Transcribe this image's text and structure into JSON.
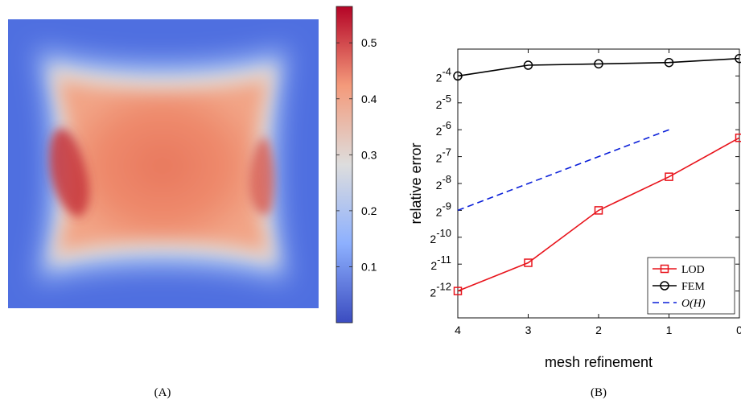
{
  "figure": {
    "caption_a": "(A)",
    "caption_b": "(B)"
  },
  "chart_data": [
    {
      "type": "heatmap",
      "panel": "A",
      "description_free": true,
      "colormap": [
        "#3b4cc0",
        "#8db0fe",
        "#dddddd",
        "#f49a7b",
        "#b40426"
      ],
      "color_range": [
        0.0,
        0.565
      ],
      "colorbar_ticks": [
        0.1,
        0.2,
        0.3,
        0.4,
        0.5
      ],
      "colorbar_tick_labels": [
        "0.1",
        "0.2",
        "0.3",
        "0.4",
        "0.5"
      ]
    },
    {
      "type": "line",
      "panel": "B",
      "xlabel": "mesh refinement",
      "ylabel": "relative error",
      "x_reversed": true,
      "xlim": [
        0,
        4
      ],
      "xticks": [
        4,
        3,
        2,
        1,
        0
      ],
      "xtick_labels": [
        "4",
        "3",
        "2",
        "1",
        "0"
      ],
      "y_scale": "log2",
      "ylim_exponent": [
        -13,
        -3
      ],
      "yticks_exponent": [
        -12,
        -11,
        -10,
        -9,
        -8,
        -7,
        -6,
        -5,
        -4
      ],
      "ytick_base": "2",
      "ytick_exponents": [
        "-12",
        "-11",
        "-10",
        "-9",
        "-8",
        "-7",
        "-6",
        "-5",
        "-4"
      ],
      "grid": false,
      "legend_position": "bottom-right",
      "series": [
        {
          "name": "LOD",
          "color": "#e8141c",
          "marker": "square",
          "dash": "solid",
          "x": [
            4,
            3,
            2,
            1,
            0
          ],
          "y_exponent": [
            -12.0,
            -10.95,
            -9.0,
            -7.75,
            -6.3
          ]
        },
        {
          "name": "FEM",
          "color": "#000000",
          "marker": "circle",
          "dash": "solid",
          "x": [
            4,
            3,
            2,
            1,
            0
          ],
          "y_exponent": [
            -4.0,
            -3.6,
            -3.55,
            -3.5,
            -3.35
          ]
        },
        {
          "name": "O(H)",
          "color": "#0a1fd9",
          "marker": "none",
          "dash": "dashed",
          "x": [
            4,
            1
          ],
          "y_exponent": [
            -9.0,
            -6.0
          ]
        }
      ]
    }
  ]
}
